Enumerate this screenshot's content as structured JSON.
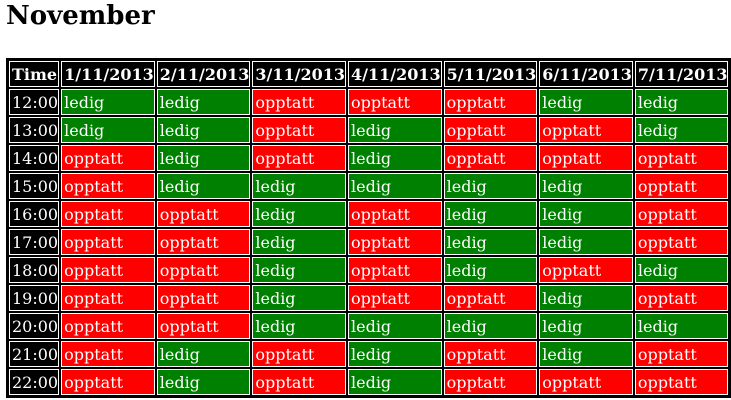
{
  "page": {
    "title": "November"
  },
  "schedule": {
    "corner_label": "Time",
    "dates": [
      "1/11/2013",
      "2/11/2013",
      "3/11/2013",
      "4/11/2013",
      "5/11/2013",
      "6/11/2013",
      "7/11/2013"
    ],
    "status_labels": {
      "free": "ledig",
      "busy": "opptatt"
    },
    "colors": {
      "free": "#008000",
      "busy": "#ff0000",
      "header_bg": "#000000"
    },
    "rows": [
      {
        "time": "12:00",
        "cells": [
          "ledig",
          "ledig",
          "opptatt",
          "opptatt",
          "opptatt",
          "ledig",
          "ledig"
        ]
      },
      {
        "time": "13:00",
        "cells": [
          "ledig",
          "ledig",
          "opptatt",
          "ledig",
          "opptatt",
          "opptatt",
          "ledig"
        ]
      },
      {
        "time": "14:00",
        "cells": [
          "opptatt",
          "ledig",
          "opptatt",
          "ledig",
          "opptatt",
          "opptatt",
          "opptatt"
        ]
      },
      {
        "time": "15:00",
        "cells": [
          "opptatt",
          "ledig",
          "ledig",
          "ledig",
          "ledig",
          "ledig",
          "opptatt"
        ]
      },
      {
        "time": "16:00",
        "cells": [
          "opptatt",
          "opptatt",
          "ledig",
          "opptatt",
          "ledig",
          "ledig",
          "opptatt"
        ]
      },
      {
        "time": "17:00",
        "cells": [
          "opptatt",
          "opptatt",
          "ledig",
          "opptatt",
          "ledig",
          "ledig",
          "opptatt"
        ]
      },
      {
        "time": "18:00",
        "cells": [
          "opptatt",
          "opptatt",
          "ledig",
          "opptatt",
          "ledig",
          "opptatt",
          "ledig"
        ]
      },
      {
        "time": "19:00",
        "cells": [
          "opptatt",
          "opptatt",
          "ledig",
          "opptatt",
          "opptatt",
          "ledig",
          "opptatt"
        ]
      },
      {
        "time": "20:00",
        "cells": [
          "opptatt",
          "opptatt",
          "ledig",
          "ledig",
          "ledig",
          "ledig",
          "ledig"
        ]
      },
      {
        "time": "21:00",
        "cells": [
          "opptatt",
          "ledig",
          "opptatt",
          "ledig",
          "opptatt",
          "ledig",
          "opptatt"
        ]
      },
      {
        "time": "22:00",
        "cells": [
          "opptatt",
          "ledig",
          "opptatt",
          "ledig",
          "opptatt",
          "opptatt",
          "opptatt"
        ]
      }
    ]
  }
}
